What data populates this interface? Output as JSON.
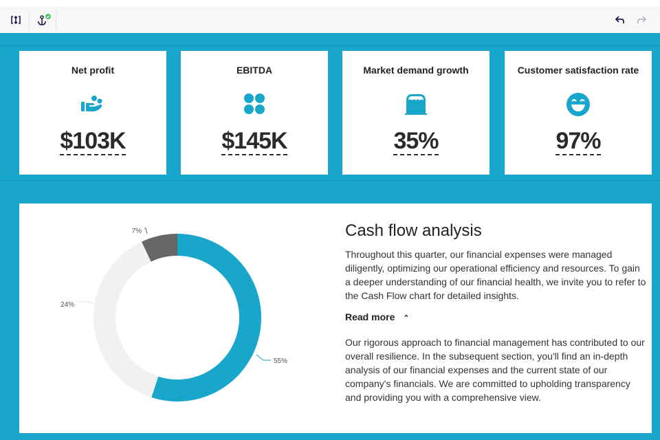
{
  "toolbar": {
    "left_icons": [
      "resize-vertical-icon",
      "anchor-icon"
    ],
    "right_icons": [
      "undo-icon",
      "redo-icon"
    ]
  },
  "kpis": [
    {
      "title": "Net profit",
      "value": "$103K",
      "icon": "hand-holding-people-icon"
    },
    {
      "title": "EBITDA",
      "value": "$145K",
      "icon": "four-circles-icon"
    },
    {
      "title": "Market demand growth",
      "value": "35%",
      "icon": "storefront-icon"
    },
    {
      "title": "Customer satisfaction rate",
      "value": "97%",
      "icon": "laughing-face-icon"
    }
  ],
  "colors": {
    "accent": "#19a6cb",
    "dark": "#666666",
    "light": "#f3f0f0"
  },
  "analysis": {
    "title": "Cash flow analysis",
    "para1": "Throughout this quarter, our financial expenses were managed diligently, optimizing our operational efficiency and resources. To gain a deeper understanding of our financial health, we invite you to refer to the Cash Flow chart for detailed insights.",
    "read_more": "Read more",
    "para2": "Our rigorous approach to financial management has contributed to our overall resilience. In the subsequent section, you'll find an in-depth analysis of our financial expenses and the current state of our company's financials. We are committed to upholding transparency and providing you with a comprehensive view."
  },
  "chart_data": {
    "type": "pie",
    "donut": true,
    "values": [
      55,
      24,
      7
    ],
    "labels": [
      "55%",
      "24%",
      "7%"
    ],
    "colors": [
      "#19a6cb",
      "#f3f0f0",
      "#666666"
    ]
  }
}
